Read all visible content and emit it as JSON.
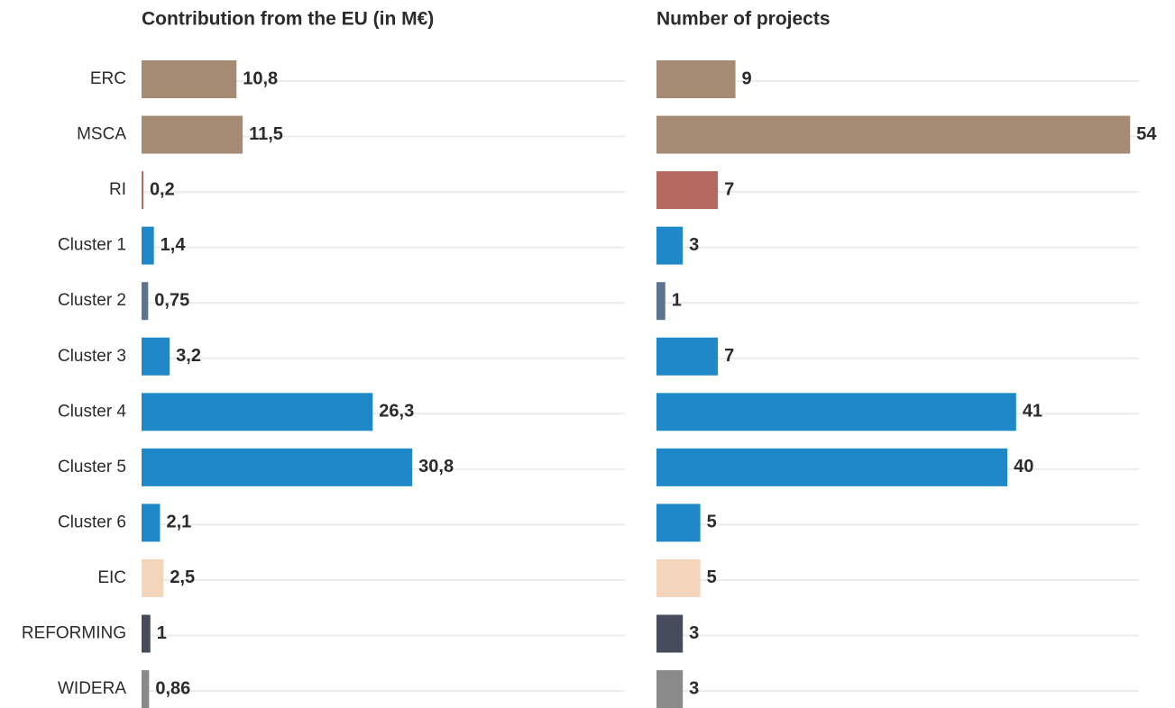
{
  "chart_data": [
    {
      "type": "hbar",
      "title": "Contribution from the EU (in M€)",
      "categories": [
        "ERC",
        "MSCA",
        "RI",
        "Cluster 1",
        "Cluster 2",
        "Cluster 3",
        "Cluster 4",
        "Cluster 5",
        "Cluster 6",
        "EIC",
        "REFORMING",
        "WIDERA"
      ],
      "values": [
        10.8,
        11.5,
        0.2,
        1.4,
        0.75,
        3.2,
        26.3,
        30.8,
        2.1,
        2.5,
        1,
        0.86
      ],
      "value_labels": [
        "10,8",
        "11,5",
        "0,2",
        "1,4",
        "0,75",
        "3,2",
        "26,3",
        "30,8",
        "2,1",
        "2,5",
        "1",
        "0,86"
      ],
      "colors": [
        "#a58a74",
        "#a58a74",
        "#b5695e",
        "#1e88c8",
        "#5b7590",
        "#1e88c8",
        "#1e88c8",
        "#1e88c8",
        "#1e88c8",
        "#f3d5bb",
        "#464c5b",
        "#8a8a8a"
      ],
      "xlim": [
        0,
        55
      ]
    },
    {
      "type": "hbar",
      "title": "Number of projects",
      "values": [
        9,
        54,
        7,
        3,
        1,
        7,
        41,
        40,
        5,
        5,
        3,
        3
      ],
      "colors": [
        "#a58a74",
        "#a58a74",
        "#b5695e",
        "#1e88c8",
        "#5b7590",
        "#1e88c8",
        "#1e88c8",
        "#1e88c8",
        "#1e88c8",
        "#f3d5bb",
        "#464c5b",
        "#8a8a8a"
      ],
      "xlim": [
        0,
        55
      ]
    }
  ]
}
